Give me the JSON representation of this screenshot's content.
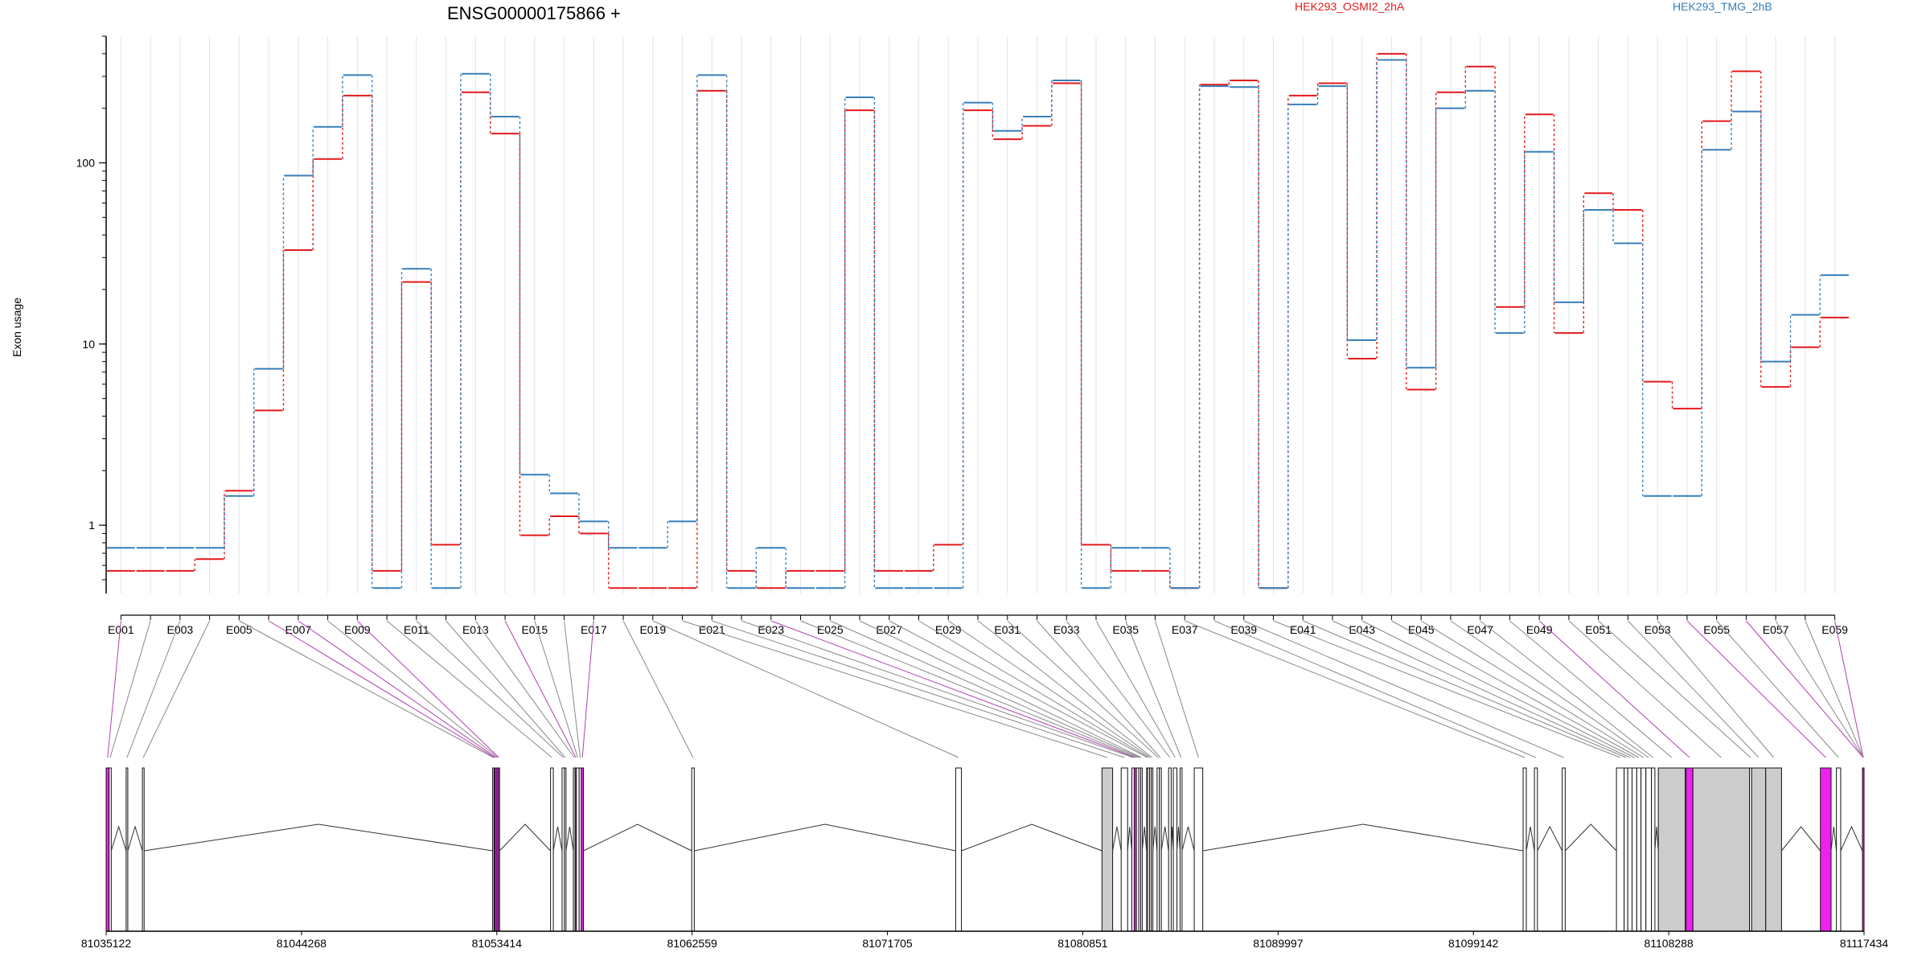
{
  "chart_data": {
    "type": "line",
    "title": "ENSG00000175866 +",
    "ylabel": "Exon usage",
    "y_scale": "log",
    "ylim": [
      0.42,
      500
    ],
    "y_ticks": [
      1,
      10,
      100
    ],
    "y_tick_labels": [
      "1",
      "10",
      "100"
    ],
    "grid": "vertical",
    "legend_position": "top",
    "line_style": "step, dashed vertical connectors",
    "categories": [
      "E001",
      "E002",
      "E003",
      "E004",
      "E005",
      "E006",
      "E007",
      "E008",
      "E009",
      "E010",
      "E011",
      "E012",
      "E013",
      "E014",
      "E015",
      "E016",
      "E017",
      "E018",
      "E019",
      "E020",
      "E021",
      "E022",
      "E023",
      "E024",
      "E025",
      "E026",
      "E027",
      "E028",
      "E029",
      "E030",
      "E031",
      "E032",
      "E033",
      "E034",
      "E035",
      "E036",
      "E037",
      "E038",
      "E039",
      "E040",
      "E041",
      "E042",
      "E043",
      "E044",
      "E045",
      "E046",
      "E047",
      "E048",
      "E049",
      "E050",
      "E051",
      "E052",
      "E053",
      "E054",
      "E055",
      "E056",
      "E057",
      "E058",
      "E059"
    ],
    "x_tick_labels": [
      "E001",
      "E003",
      "E005",
      "E007",
      "E009",
      "E011",
      "E013",
      "E015",
      "E017",
      "E019",
      "E021",
      "E023",
      "E025",
      "E027",
      "E029",
      "E031",
      "E033",
      "E035",
      "E037",
      "E039",
      "E041",
      "E043",
      "E045",
      "E047",
      "E049",
      "E051",
      "E053",
      "E055",
      "E057",
      "E059"
    ],
    "series": [
      {
        "name": "HEK293_OSMI2_2hA",
        "color": "#e41a1c",
        "values": [
          0.56,
          0.56,
          0.56,
          0.65,
          1.55,
          4.3,
          33,
          105,
          235,
          0.56,
          22,
          0.78,
          245,
          145,
          0.88,
          1.12,
          0.9,
          0.45,
          0.45,
          0.45,
          250,
          0.56,
          0.45,
          0.56,
          0.56,
          195,
          0.56,
          0.56,
          0.78,
          195,
          135,
          160,
          275,
          0.78,
          0.56,
          0.56,
          0.45,
          270,
          285,
          0.45,
          235,
          275,
          8.3,
          400,
          5.6,
          245,
          340,
          16,
          185,
          11.5,
          68,
          55,
          6.2,
          4.4,
          170,
          320,
          5.8,
          9.6,
          14
        ]
      },
      {
        "name": "HEK293_TMG_2hB",
        "color": "#377eb8",
        "values": [
          0.75,
          0.75,
          0.75,
          0.75,
          1.45,
          7.3,
          85,
          158,
          305,
          0.45,
          26,
          0.45,
          310,
          180,
          1.9,
          1.5,
          1.05,
          0.75,
          0.75,
          1.05,
          305,
          0.45,
          0.75,
          0.45,
          0.45,
          230,
          0.45,
          0.45,
          0.45,
          215,
          150,
          180,
          285,
          0.45,
          0.75,
          0.75,
          0.45,
          265,
          262,
          0.45,
          210,
          265,
          10.5,
          370,
          7.4,
          200,
          250,
          11.5,
          115,
          17,
          55,
          36,
          1.45,
          1.45,
          118,
          192,
          8,
          14.5,
          24
        ]
      }
    ],
    "gene_model": {
      "genomic_ticks": [
        "81035122",
        "81044268",
        "81053414",
        "81062559",
        "81071705",
        "81080851",
        "81089997",
        "81099142",
        "81108288",
        "81117434"
      ],
      "range": [
        81035122,
        81117434
      ],
      "exons": [
        {
          "id": "E001",
          "start": 81035122,
          "end": 81035260,
          "highlight": true
        },
        {
          "id": "E002",
          "start": 81035260,
          "end": 81035360,
          "highlight": false
        },
        {
          "id": "E003",
          "start": 81036060,
          "end": 81036120,
          "highlight": false
        },
        {
          "id": "E004",
          "start": 81036820,
          "end": 81036900,
          "highlight": false
        },
        {
          "id": "E005",
          "start": 81053220,
          "end": 81053280,
          "highlight": false
        },
        {
          "id": "E006",
          "start": 81053280,
          "end": 81053330,
          "highlight": true
        },
        {
          "id": "E007",
          "start": 81053330,
          "end": 81053420,
          "highlight": true
        },
        {
          "id": "E008",
          "start": 81053420,
          "end": 81053470,
          "highlight": false
        },
        {
          "id": "E009",
          "start": 81053470,
          "end": 81053530,
          "highlight": true
        },
        {
          "id": "E010",
          "start": 81055930,
          "end": 81056060,
          "highlight": false
        },
        {
          "id": "E011",
          "start": 81056470,
          "end": 81056580,
          "highlight": false
        },
        {
          "id": "E012",
          "start": 81056580,
          "end": 81056620,
          "highlight": false
        },
        {
          "id": "E013",
          "start": 81057000,
          "end": 81057080,
          "highlight": false
        },
        {
          "id": "E014",
          "start": 81057080,
          "end": 81057140,
          "highlight": true
        },
        {
          "id": "E015",
          "start": 81057140,
          "end": 81057270,
          "highlight": false
        },
        {
          "id": "E016",
          "start": 81057270,
          "end": 81057370,
          "highlight": false
        },
        {
          "id": "E017",
          "start": 81057370,
          "end": 81057470,
          "highlight": true
        },
        {
          "id": "E018",
          "start": 81062540,
          "end": 81062660,
          "highlight": false
        },
        {
          "id": "E019",
          "start": 81074900,
          "end": 81075170,
          "highlight": false
        },
        {
          "id": "E020",
          "start": 81081750,
          "end": 81082250,
          "highlight": false
        },
        {
          "id": "E021",
          "start": 81082650,
          "end": 81082950,
          "highlight": false
        },
        {
          "id": "E022",
          "start": 81083150,
          "end": 81083260,
          "highlight": false
        },
        {
          "id": "E023",
          "start": 81083260,
          "end": 81083360,
          "highlight": true
        },
        {
          "id": "E024",
          "start": 81083360,
          "end": 81083470,
          "highlight": false
        },
        {
          "id": "E025",
          "start": 81083470,
          "end": 81083560,
          "highlight": false
        },
        {
          "id": "E026",
          "start": 81083560,
          "end": 81083620,
          "highlight": false
        },
        {
          "id": "E027",
          "start": 81083840,
          "end": 81083890,
          "highlight": false
        },
        {
          "id": "E028",
          "start": 81083890,
          "end": 81083980,
          "highlight": false
        },
        {
          "id": "E029",
          "start": 81083980,
          "end": 81084060,
          "highlight": false
        },
        {
          "id": "E030",
          "start": 81084060,
          "end": 81084130,
          "highlight": false
        },
        {
          "id": "E031",
          "start": 81084330,
          "end": 81084440,
          "highlight": false
        },
        {
          "id": "E032",
          "start": 81084440,
          "end": 81084530,
          "highlight": false
        },
        {
          "id": "E033",
          "start": 81084870,
          "end": 81084990,
          "highlight": false
        },
        {
          "id": "E034",
          "start": 81085090,
          "end": 81085260,
          "highlight": false
        },
        {
          "id": "E035",
          "start": 81085410,
          "end": 81085500,
          "highlight": false
        },
        {
          "id": "E036",
          "start": 81086070,
          "end": 81086470,
          "highlight": false
        },
        {
          "id": "E037",
          "start": 81101470,
          "end": 81101620,
          "highlight": false
        },
        {
          "id": "E038",
          "start": 81102000,
          "end": 81102140,
          "highlight": false
        },
        {
          "id": "E039",
          "start": 81103300,
          "end": 81103440,
          "highlight": false
        },
        {
          "id": "E040",
          "start": 81105840,
          "end": 81106200,
          "highlight": false
        },
        {
          "id": "E041",
          "start": 81106200,
          "end": 81106370,
          "highlight": false
        },
        {
          "id": "E042",
          "start": 81106370,
          "end": 81106570,
          "highlight": false
        },
        {
          "id": "E043",
          "start": 81106570,
          "end": 81106790,
          "highlight": false
        },
        {
          "id": "E044",
          "start": 81106790,
          "end": 81106990,
          "highlight": false
        },
        {
          "id": "E045",
          "start": 81106990,
          "end": 81107220,
          "highlight": false
        },
        {
          "id": "E046",
          "start": 81107220,
          "end": 81107480,
          "highlight": false
        },
        {
          "id": "E047",
          "start": 81107480,
          "end": 81107640,
          "highlight": false
        },
        {
          "id": "E048",
          "start": 81107800,
          "end": 81109060,
          "highlight": false
        },
        {
          "id": "E049",
          "start": 81109100,
          "end": 81109420,
          "highlight": true
        },
        {
          "id": "E050",
          "start": 81109420,
          "end": 81112070,
          "highlight": false
        },
        {
          "id": "E051",
          "start": 81112070,
          "end": 81112170,
          "highlight": false
        },
        {
          "id": "E052",
          "start": 81112170,
          "end": 81112830,
          "highlight": false
        },
        {
          "id": "E053",
          "start": 81112830,
          "end": 81113570,
          "highlight": false
        },
        {
          "id": "E054",
          "start": 81115390,
          "end": 81115890,
          "highlight": true
        },
        {
          "id": "E055",
          "start": 81116140,
          "end": 81116340,
          "highlight": false
        },
        {
          "id": "E056",
          "start": 81125000,
          "end": 81125800,
          "highlight": true
        },
        {
          "id": "E057",
          "start": 81125800,
          "end": 81125950,
          "highlight": false
        },
        {
          "id": "E058",
          "start": 81125950,
          "end": 81126600,
          "highlight": false
        },
        {
          "id": "E059",
          "start": 81126600,
          "end": 81128150,
          "highlight": true
        }
      ]
    }
  }
}
